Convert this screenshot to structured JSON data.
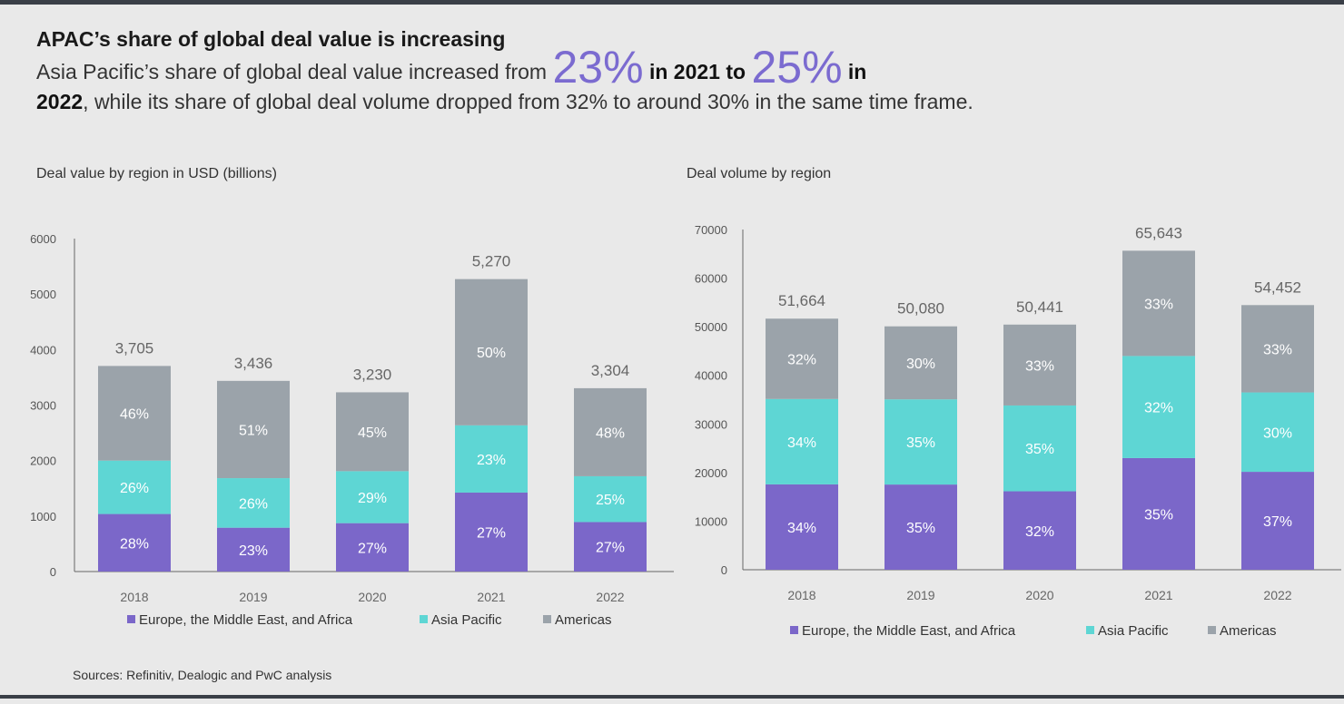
{
  "headline": "APAC’s share of global deal value is increasing",
  "summary": {
    "p1": "Asia Pacific’s share of global deal value increased from ",
    "v2021": "23%",
    "p2": " in 2021 to ",
    "v2022": "25%",
    "p3": " in",
    "p4": "2022",
    "p5": ", while its share of global deal volume dropped from 32% to around 30% in the same time frame."
  },
  "colors": {
    "emea": "#7b67c9",
    "apac": "#5ed6d4",
    "americas": "#9ba3aa"
  },
  "chart_data": [
    {
      "type": "bar",
      "stacked": true,
      "title": "Deal value by region in USD (billions)",
      "categories": [
        "2018",
        "2019",
        "2020",
        "2021",
        "2022"
      ],
      "ylim": [
        0,
        6000
      ],
      "yticks": [
        0,
        1000,
        2000,
        3000,
        4000,
        5000,
        6000
      ],
      "totals": [
        3705,
        3436,
        3230,
        5270,
        3304
      ],
      "total_labels": [
        "3,705",
        "3,436",
        "3,230",
        "5,270",
        "3,304"
      ],
      "series": [
        {
          "name": "Europe, the Middle East, and Africa",
          "values": [
            1037,
            790,
            872,
            1423,
            892
          ],
          "labels": [
            "28%",
            "23%",
            "27%",
            "27%",
            "27%"
          ]
        },
        {
          "name": "Asia Pacific",
          "values": [
            963,
            893,
            937,
            1212,
            826
          ],
          "labels": [
            "26%",
            "26%",
            "29%",
            "23%",
            "25%"
          ]
        },
        {
          "name": "Americas",
          "values": [
            1705,
            1753,
            1421,
            2635,
            1586
          ],
          "labels": [
            "46%",
            "51%",
            "45%",
            "50%",
            "48%"
          ]
        }
      ],
      "legend": "bottom"
    },
    {
      "type": "bar",
      "stacked": true,
      "title": "Deal volume by region",
      "categories": [
        "2018",
        "2019",
        "2020",
        "2021",
        "2022"
      ],
      "ylim": [
        0,
        70000
      ],
      "yticks": [
        0,
        10000,
        20000,
        30000,
        40000,
        50000,
        60000,
        70000
      ],
      "totals": [
        51664,
        50080,
        50441,
        65643,
        54452
      ],
      "total_labels": [
        "51,664",
        "50,080",
        "50,441",
        "65,643",
        "54,452"
      ],
      "series": [
        {
          "name": "Europe, the Middle East, and Africa",
          "values": [
            17566,
            17528,
            16141,
            22975,
            20147
          ],
          "labels": [
            "34%",
            "35%",
            "32%",
            "35%",
            "37%"
          ]
        },
        {
          "name": "Asia Pacific",
          "values": [
            17566,
            17528,
            17654,
            21006,
            16336
          ],
          "labels": [
            "34%",
            "35%",
            "35%",
            "32%",
            "30%"
          ]
        },
        {
          "name": "Americas",
          "values": [
            16532,
            15024,
            16646,
            21662,
            17969
          ],
          "labels": [
            "32%",
            "30%",
            "33%",
            "33%",
            "33%"
          ]
        }
      ],
      "legend": "bottom"
    }
  ],
  "source": "Sources: Refinitiv, Dealogic and PwC analysis"
}
